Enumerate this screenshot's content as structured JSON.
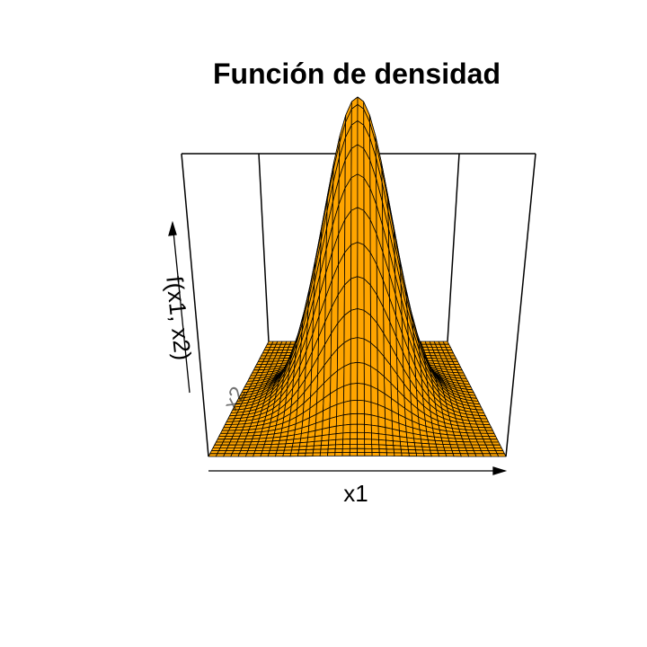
{
  "chart_data": {
    "type": "surface",
    "title": "Función de densidad",
    "xlabel": "x1",
    "ylabel": "x2",
    "zlabel": "f(x1, x2)",
    "function": "bivariate normal density",
    "mean": [
      0,
      0
    ],
    "sd": [
      1,
      1
    ],
    "correlation": 0,
    "grid_n": 40,
    "box": true,
    "axes_ticks": false,
    "surface_color": "#FFA500",
    "mesh_color": "#000000"
  }
}
